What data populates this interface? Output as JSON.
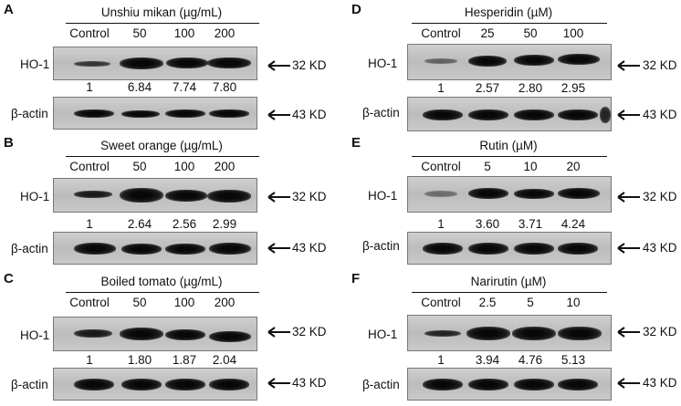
{
  "markers": {
    "ho1": "32 KD",
    "actin": "43 KD"
  },
  "panels": [
    {
      "letter": "A",
      "title": "Unshiu mikan (µg/mL)",
      "lanes": [
        "Control",
        "50",
        "100",
        "200"
      ],
      "row1": "HO-1",
      "row2": "β-actin",
      "ratios": [
        "1",
        "6.84",
        "7.74",
        "7.80"
      ]
    },
    {
      "letter": "B",
      "title": "Sweet orange  (µg/mL)",
      "lanes": [
        "Control",
        "50",
        "100",
        "200"
      ],
      "row1": "HO-1",
      "row2": "β-actin",
      "ratios": [
        "1",
        "2.64",
        "2.56",
        "2.99"
      ]
    },
    {
      "letter": "C",
      "title": "Boiled tomato (µg/mL)",
      "lanes": [
        "Control",
        "50",
        "100",
        "200"
      ],
      "row1": "HO-1",
      "row2": "β-actin",
      "ratios": [
        "1",
        "1.80",
        "1.87",
        "2.04"
      ]
    },
    {
      "letter": "D",
      "title": "Hesperidin (µM)",
      "lanes": [
        "Control",
        "25",
        "50",
        "100"
      ],
      "row1": "HO-1",
      "row2": "β-actin",
      "ratios": [
        "1",
        "2.57",
        "2.80",
        "2.95"
      ]
    },
    {
      "letter": "E",
      "title": "Rutin (µM)",
      "lanes": [
        "Control",
        "5",
        "10",
        "20"
      ],
      "row1": "HO-1",
      "row2": "β-actin",
      "ratios": [
        "1",
        "3.60",
        "3.71",
        "4.24"
      ]
    },
    {
      "letter": "F",
      "title": "Narirutin  (µM)",
      "lanes": [
        "Control",
        "2.5",
        "5",
        "10"
      ],
      "row1": "HO-1",
      "row2": "β-actin",
      "ratios": [
        "1",
        "3.94",
        "4.76",
        "5.13"
      ]
    }
  ]
}
